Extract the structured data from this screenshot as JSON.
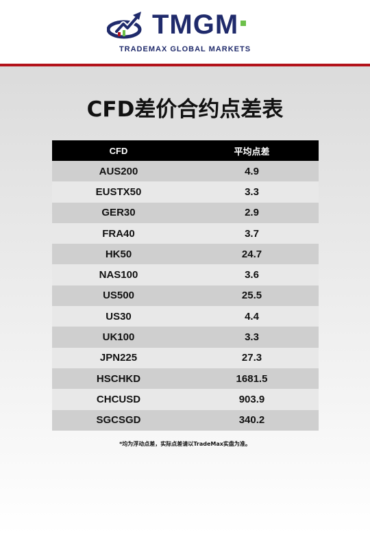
{
  "header": {
    "brand": "TMGM",
    "tagline": "TRADEMAX GLOBAL MARKETS",
    "colors": {
      "brand_navy": "#1f2a6b",
      "accent_red": "#b3121a",
      "accent_green": "#6cc04a"
    },
    "logo_icon": "bull-chart-logo-icon"
  },
  "title": "CFD差价合约点差表",
  "table": {
    "headers": [
      "CFD",
      "平均点差"
    ],
    "rows": [
      [
        "AUS200",
        "4.9"
      ],
      [
        "EUSTX50",
        "3.3"
      ],
      [
        "GER30",
        "2.9"
      ],
      [
        "FRA40",
        "3.7"
      ],
      [
        "HK50",
        "24.7"
      ],
      [
        "NAS100",
        "3.6"
      ],
      [
        "US500",
        "25.5"
      ],
      [
        "US30",
        "4.4"
      ],
      [
        "UK100",
        "3.3"
      ],
      [
        "JPN225",
        "27.3"
      ],
      [
        "HSCHKD",
        "1681.5"
      ],
      [
        "CHCUSD",
        "903.9"
      ],
      [
        "SGCSGD",
        "340.2"
      ]
    ]
  },
  "footnote": "*均为浮动点差，实际点差请以TradeMax实盘为准。"
}
